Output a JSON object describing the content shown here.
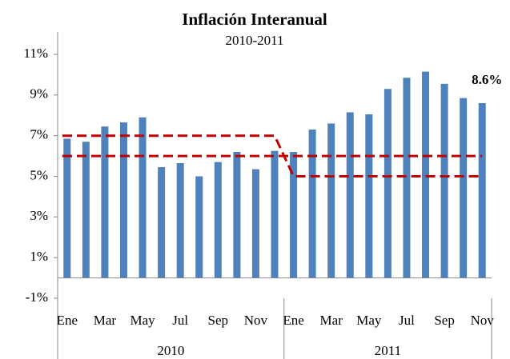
{
  "chart_data": {
    "type": "bar",
    "title": "Inflación Interanual",
    "subtitle": "2010-2011",
    "categories": [
      "Ene",
      null,
      "Mar",
      null,
      "May",
      null,
      "Jul",
      null,
      "Sep",
      null,
      "Nov",
      null,
      "Ene",
      null,
      "Mar",
      null,
      "May",
      null,
      "Jul",
      null,
      "Sep",
      null,
      "Nov"
    ],
    "groups": [
      {
        "label": "2010",
        "count": 12
      },
      {
        "label": "2011",
        "count": 11
      }
    ],
    "values": [
      6.85,
      6.7,
      7.45,
      7.65,
      7.9,
      5.45,
      5.65,
      5.0,
      5.7,
      6.2,
      5.35,
      6.25,
      6.2,
      7.3,
      7.6,
      8.15,
      8.05,
      9.3,
      9.85,
      10.15,
      9.55,
      8.85,
      8.6
    ],
    "value_labels": [
      null,
      null,
      null,
      null,
      null,
      null,
      null,
      null,
      null,
      null,
      null,
      null,
      null,
      null,
      null,
      null,
      null,
      null,
      null,
      null,
      null,
      null,
      "8.6%"
    ],
    "color": "#4f81bd",
    "target_upper": [
      7,
      7,
      7,
      7,
      7,
      7,
      7,
      7,
      7,
      7,
      7,
      7,
      5,
      5,
      5,
      5,
      5,
      5,
      5,
      5,
      5,
      5,
      5
    ],
    "target_lower": [
      6,
      6,
      6,
      6,
      6,
      6,
      6,
      6,
      6,
      6,
      6,
      6,
      6,
      6,
      6,
      6,
      6,
      6,
      6,
      6,
      6,
      6,
      6
    ],
    "target_color": "#c00000",
    "ylim": [
      -1,
      11
    ],
    "yticks": [
      {
        "value": -1,
        "label": "-1%"
      },
      {
        "value": 1,
        "label": "1%"
      },
      {
        "value": 3,
        "label": "3%"
      },
      {
        "value": 5,
        "label": "5%"
      },
      {
        "value": 7,
        "label": "7%"
      },
      {
        "value": 9,
        "label": "9%"
      },
      {
        "value": 11,
        "label": "11%"
      }
    ],
    "grid": false
  }
}
